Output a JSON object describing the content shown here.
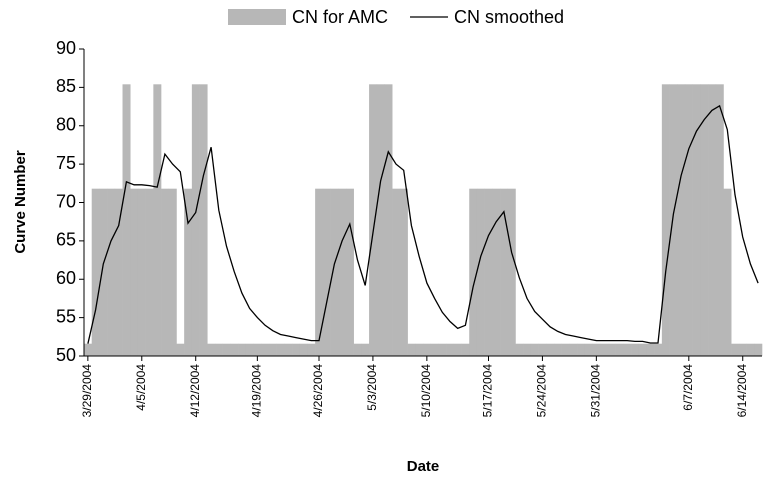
{
  "chart_data": {
    "type": "bar-line",
    "x_label": "Date",
    "y_label": "Curve Number",
    "categories": [
      "3/29/2004",
      null,
      null,
      null,
      null,
      null,
      null,
      "4/5/2004",
      null,
      null,
      null,
      null,
      null,
      null,
      "4/12/2004",
      null,
      null,
      null,
      null,
      null,
      null,
      null,
      "4/19/2004",
      null,
      null,
      null,
      null,
      null,
      null,
      null,
      "4/26/2004",
      null,
      null,
      null,
      null,
      null,
      null,
      "5/3/2004",
      null,
      null,
      null,
      null,
      null,
      null,
      "5/10/2004",
      null,
      null,
      null,
      null,
      null,
      null,
      null,
      "5/17/2004",
      null,
      null,
      null,
      null,
      null,
      null,
      "5/24/2004",
      null,
      null,
      null,
      null,
      null,
      null,
      "5/31/2004",
      null,
      null,
      null,
      null,
      null,
      null,
      null,
      null,
      null,
      null,
      null,
      "6/7/2004",
      null,
      null,
      null,
      null,
      null,
      null,
      "6/14/2004",
      null,
      null
    ],
    "series": [
      {
        "name": "CN for AMC",
        "kind": "bar",
        "color": "#b7b7b7",
        "values": [
          51.6,
          71.8,
          71.8,
          71.8,
          71.8,
          85.4,
          71.8,
          71.8,
          71.8,
          85.4,
          71.8,
          71.8,
          51.6,
          71.8,
          85.4,
          85.4,
          51.6,
          51.6,
          51.6,
          51.6,
          51.6,
          51.6,
          51.6,
          51.6,
          51.6,
          51.6,
          51.6,
          51.6,
          51.6,
          51.6,
          71.8,
          71.8,
          71.8,
          71.8,
          71.8,
          51.6,
          51.6,
          85.4,
          85.4,
          85.4,
          71.8,
          71.8,
          51.6,
          51.6,
          51.6,
          51.6,
          51.6,
          51.6,
          51.6,
          51.6,
          71.8,
          71.8,
          71.8,
          71.8,
          71.8,
          71.8,
          51.6,
          51.6,
          51.6,
          51.6,
          51.6,
          51.6,
          51.6,
          51.6,
          51.6,
          51.6,
          51.6,
          51.6,
          51.6,
          51.6,
          51.6,
          51.6,
          51.6,
          51.6,
          51.6,
          85.4,
          85.4,
          85.4,
          85.4,
          85.4,
          85.4,
          85.4,
          85.4,
          71.8,
          51.6,
          51.6,
          51.6,
          51.6
        ]
      },
      {
        "name": "CN smoothed",
        "kind": "line",
        "color": "#000000",
        "values": [
          51.6,
          56,
          62,
          65,
          67,
          72.7,
          72.3,
          72.3,
          72.2,
          72,
          76.3,
          75,
          74,
          67.3,
          68.7,
          73.5,
          77.2,
          69,
          64.3,
          61,
          58.2,
          56.2,
          55,
          54,
          53.3,
          52.8,
          52.6,
          52.4,
          52.2,
          52,
          52,
          57,
          62,
          65,
          67.2,
          62.5,
          59.2,
          66,
          72.8,
          76.6,
          75,
          74.2,
          67,
          63,
          59.5,
          57.5,
          55.7,
          54.5,
          53.6,
          54,
          59,
          63,
          65.7,
          67.5,
          68.8,
          63.5,
          60.2,
          57.5,
          55.8,
          54.8,
          53.8,
          53.2,
          52.8,
          52.6,
          52.4,
          52.2,
          52,
          52,
          52,
          52,
          52,
          51.9,
          51.9,
          51.7,
          51.7,
          61,
          68.5,
          73.5,
          77,
          79.3,
          80.8,
          82,
          82.6,
          79.5,
          71,
          65.5,
          62,
          59.5
        ]
      }
    ],
    "ylim": [
      50,
      90
    ],
    "yticks": [
      50,
      55,
      60,
      65,
      70,
      75,
      80,
      85,
      90
    ],
    "grid": false,
    "legend": "top"
  }
}
